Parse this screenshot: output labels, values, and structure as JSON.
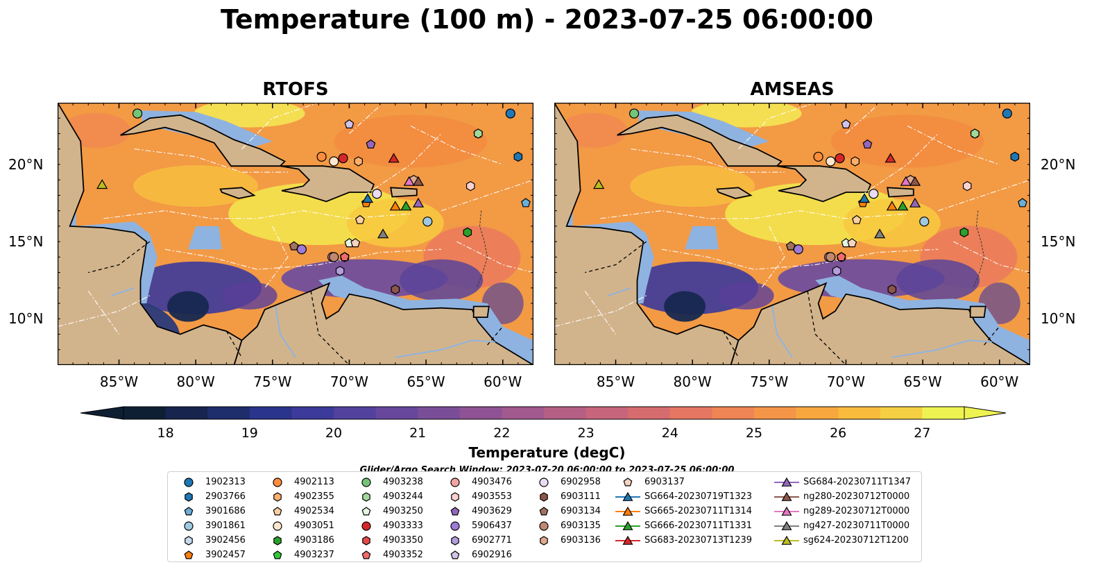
{
  "title": "Temperature (100 m) - 2023-07-25 06:00:00",
  "panels": [
    {
      "title": "RTOFS",
      "variant": "rtofs"
    },
    {
      "title": "AMSEAS",
      "variant": "amseas"
    }
  ],
  "axes": {
    "lon_ticks": [
      "85°W",
      "80°W",
      "75°W",
      "70°W",
      "65°W",
      "60°W"
    ],
    "lat_ticks": [
      "20°N",
      "15°N",
      "10°N"
    ],
    "lon_range": [
      -89,
      -58
    ],
    "lat_range": [
      7,
      24
    ]
  },
  "colorbar": {
    "label": "Temperature (degC)",
    "ticks": [
      "18",
      "19",
      "20",
      "21",
      "22",
      "23",
      "24",
      "25",
      "26",
      "27"
    ],
    "vmin": 18,
    "vmax": 27,
    "colors": [
      "#0f1f33",
      "#16244e",
      "#1e2d6c",
      "#2a348a",
      "#3c3a9a",
      "#52419d",
      "#66479c",
      "#7a4d99",
      "#8e5394",
      "#a2598d",
      "#b55f85",
      "#c7657c",
      "#d76c6f",
      "#e57662",
      "#ef8455",
      "#f59548",
      "#f8a73e",
      "#f9bb3c",
      "#f5d043",
      "#eef352"
    ]
  },
  "search_window": "Glider/Argo Search Window: 2023-07-20 06:00:00 to 2023-07-25 06:00:00",
  "legend": [
    {
      "label": "1902313",
      "marker": "circle",
      "color": "#1f77b4"
    },
    {
      "label": "2903766",
      "marker": "hexagon",
      "color": "#1f77b4"
    },
    {
      "label": "3901686",
      "marker": "pentagon",
      "color": "#6baed6"
    },
    {
      "label": "3901861",
      "marker": "circle",
      "color": "#9ecae1"
    },
    {
      "label": "3902456",
      "marker": "hexagon",
      "color": "#c6dbef"
    },
    {
      "label": "3902457",
      "marker": "pentagon",
      "color": "#ff7f0e"
    },
    {
      "label": "4902113",
      "marker": "circle",
      "color": "#fd8d3c"
    },
    {
      "label": "4902355",
      "marker": "hexagon",
      "color": "#fdae6b"
    },
    {
      "label": "4902534",
      "marker": "pentagon",
      "color": "#fdd0a2"
    },
    {
      "label": "4903051",
      "marker": "circle",
      "color": "#fee6ce"
    },
    {
      "label": "4903186",
      "marker": "hexagon",
      "color": "#2ca02c"
    },
    {
      "label": "4903237",
      "marker": "pentagon",
      "color": "#31c83a"
    },
    {
      "label": "4903238",
      "marker": "circle",
      "color": "#74c476"
    },
    {
      "label": "4903244",
      "marker": "hexagon",
      "color": "#a1d99b"
    },
    {
      "label": "4903250",
      "marker": "pentagon",
      "color": "#e5f5e0"
    },
    {
      "label": "4903333",
      "marker": "circle",
      "color": "#d62728"
    },
    {
      "label": "4903350",
      "marker": "hexagon",
      "color": "#e34a4a"
    },
    {
      "label": "4903352",
      "marker": "pentagon",
      "color": "#f06b6b"
    },
    {
      "label": "4903476",
      "marker": "circle",
      "color": "#f4a3a3"
    },
    {
      "label": "4903553",
      "marker": "hexagon",
      "color": "#fcd1d1"
    },
    {
      "label": "4903629",
      "marker": "pentagon",
      "color": "#9467bd"
    },
    {
      "label": "5906437",
      "marker": "circle",
      "color": "#9e7bd6"
    },
    {
      "label": "6902771",
      "marker": "hexagon",
      "color": "#b39ddb"
    },
    {
      "label": "6902916",
      "marker": "pentagon",
      "color": "#d1c4e9"
    },
    {
      "label": "6902958",
      "marker": "circle",
      "color": "#e9dcf7"
    },
    {
      "label": "6903111",
      "marker": "hexagon",
      "color": "#8c564b"
    },
    {
      "label": "6903134",
      "marker": "pentagon",
      "color": "#a0725f"
    },
    {
      "label": "6903135",
      "marker": "circle",
      "color": "#c08873"
    },
    {
      "label": "6903136",
      "marker": "hexagon",
      "color": "#e0a98f"
    },
    {
      "label": "6903137",
      "marker": "pentagon",
      "color": "#f7d3c1"
    },
    {
      "label": "SG664-20230719T1323",
      "marker": "triangle",
      "color": "#1f77b4"
    },
    {
      "label": "SG665-20230711T1314",
      "marker": "triangle",
      "color": "#ff7f0e"
    },
    {
      "label": "SG666-20230711T1331",
      "marker": "triangle",
      "color": "#2ca02c"
    },
    {
      "label": "SG683-20230713T1239",
      "marker": "triangle",
      "color": "#d62728"
    },
    {
      "label": "SG684-20230711T1347",
      "marker": "triangle",
      "color": "#9467bd"
    },
    {
      "label": "ng280-20230712T0000",
      "marker": "triangle",
      "color": "#8c564b"
    },
    {
      "label": "ng289-20230712T0000",
      "marker": "triangle",
      "color": "#e377c2"
    },
    {
      "label": "ng427-20230711T0000",
      "marker": "triangle",
      "color": "#7f7f7f"
    },
    {
      "label": "sg624-20230712T1200",
      "marker": "triangle",
      "color": "#bcbd22"
    }
  ],
  "chart_data": {
    "type": "scatter",
    "title": "Temperature (100 m) - 2023-07-25 06:00:00",
    "xlabel": "",
    "ylabel": "",
    "xlim": [
      -89,
      -58
    ],
    "ylim": [
      7,
      24
    ],
    "points": [
      {
        "name": "1902313",
        "lon": -59.5,
        "lat": 23.3
      },
      {
        "name": "2903766",
        "lon": -59.0,
        "lat": 20.5
      },
      {
        "name": "3901686",
        "lon": -58.5,
        "lat": 17.5
      },
      {
        "name": "3901861",
        "lon": -64.9,
        "lat": 16.3
      },
      {
        "name": "3902456",
        "lon": -68.2,
        "lat": 18.1
      },
      {
        "name": "3902457",
        "lon": -68.9,
        "lat": 17.5
      },
      {
        "name": "4902113",
        "lon": -71.8,
        "lat": 20.5
      },
      {
        "name": "4902355",
        "lon": -69.4,
        "lat": 20.2
      },
      {
        "name": "4902534",
        "lon": -69.3,
        "lat": 16.4
      },
      {
        "name": "4903051",
        "lon": -71.0,
        "lat": 20.2
      },
      {
        "name": "4903186",
        "lon": -62.3,
        "lat": 15.6
      },
      {
        "name": "4903237",
        "lon": -61.6,
        "lat": 22.0
      },
      {
        "name": "4903238",
        "lon": -83.8,
        "lat": 23.3
      },
      {
        "name": "4903244",
        "lon": -61.6,
        "lat": 22.0
      },
      {
        "name": "4903250",
        "lon": -70.0,
        "lat": 14.9
      },
      {
        "name": "4903333",
        "lon": -70.4,
        "lat": 20.4
      },
      {
        "name": "4903350",
        "lon": -70.3,
        "lat": 14.0
      },
      {
        "name": "4903352",
        "lon": -70.3,
        "lat": 14.0
      },
      {
        "name": "4903476",
        "lon": -71.1,
        "lat": 14.0
      },
      {
        "name": "4903553",
        "lon": -62.1,
        "lat": 18.6
      },
      {
        "name": "4903629",
        "lon": -68.6,
        "lat": 21.3
      },
      {
        "name": "5906437",
        "lon": -73.1,
        "lat": 14.5
      },
      {
        "name": "6902771",
        "lon": -70.6,
        "lat": 13.1
      },
      {
        "name": "6902916",
        "lon": -70.0,
        "lat": 22.6
      },
      {
        "name": "6902958",
        "lon": -68.2,
        "lat": 18.1
      },
      {
        "name": "6903111",
        "lon": -67.0,
        "lat": 11.9
      },
      {
        "name": "6903134",
        "lon": -73.6,
        "lat": 14.7
      },
      {
        "name": "6903135",
        "lon": -71.0,
        "lat": 14.0
      },
      {
        "name": "6903136",
        "lon": -65.8,
        "lat": 19.0
      },
      {
        "name": "6903137",
        "lon": -69.6,
        "lat": 14.9
      },
      {
        "name": "SG664-20230719T1323",
        "lon": -68.8,
        "lat": 17.8
      },
      {
        "name": "SG665-20230711T1314",
        "lon": -67.0,
        "lat": 17.3
      },
      {
        "name": "SG666-20230711T1331",
        "lon": -66.3,
        "lat": 17.3
      },
      {
        "name": "SG683-20230713T1239",
        "lon": -67.1,
        "lat": 20.4
      },
      {
        "name": "SG684-20230711T1347",
        "lon": -65.5,
        "lat": 17.5
      },
      {
        "name": "ng280-20230712T0000",
        "lon": -65.5,
        "lat": 18.9
      },
      {
        "name": "ng289-20230712T0000",
        "lon": -66.1,
        "lat": 18.9
      },
      {
        "name": "ng427-20230711T0000",
        "lon": -67.8,
        "lat": 15.5
      },
      {
        "name": "sg624-20230712T1200",
        "lon": -86.1,
        "lat": 18.7
      }
    ]
  }
}
